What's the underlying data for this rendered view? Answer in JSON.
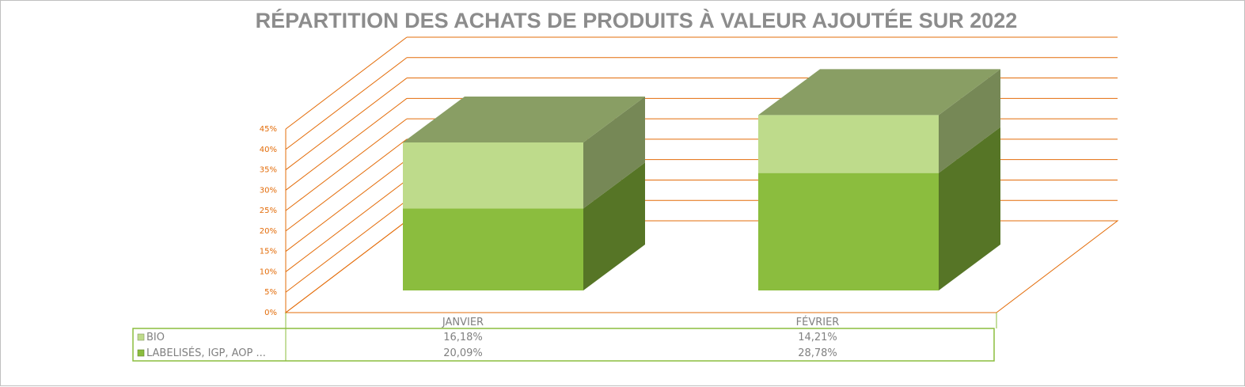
{
  "chart_data": {
    "type": "bar",
    "stacked": true,
    "three_d": true,
    "title": "RÉPARTITION DES ACHATS DE PRODUITS À VALEUR AJOUTÉE SUR 2022",
    "categories": [
      "JANVIER",
      "FÉVRIER"
    ],
    "series": [
      {
        "name": "LABELISÉS, IGP, AOP ...",
        "values": [
          20.09,
          28.78
        ],
        "labels": [
          "20,09%",
          "28,78%"
        ],
        "color": "#8bbd3e"
      },
      {
        "name": "BIO",
        "values": [
          16.18,
          14.21
        ],
        "labels": [
          "16,18%",
          "14,21%"
        ],
        "color": "#bedb8b"
      }
    ],
    "ylim": [
      0,
      45
    ],
    "yticks": [
      "0%",
      "5%",
      "10%",
      "15%",
      "20%",
      "25%",
      "30%",
      "35%",
      "40%",
      "45%"
    ],
    "grid": true,
    "data_table": true,
    "gridline_color": "#e36c09",
    "table_border_color": "#8bbd3e"
  }
}
